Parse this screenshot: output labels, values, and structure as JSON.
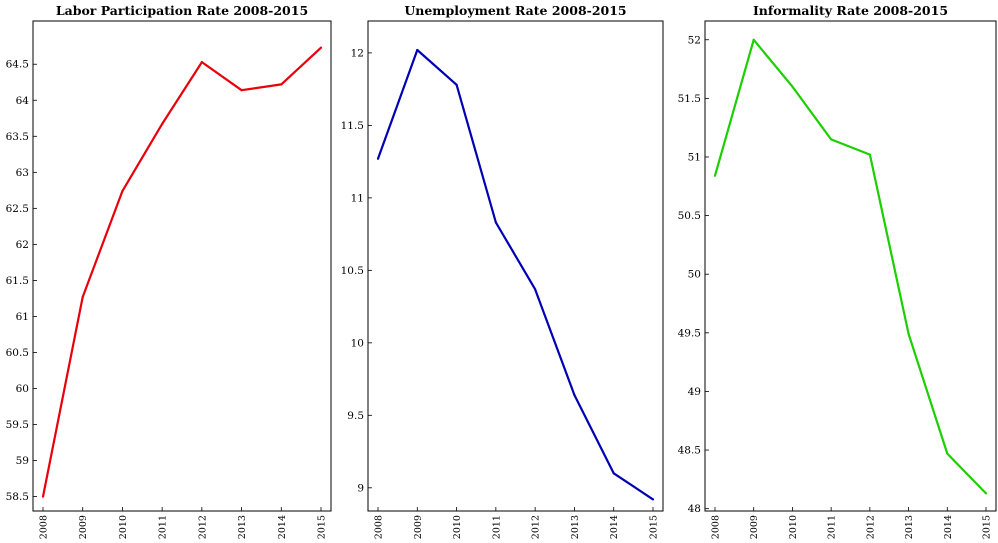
{
  "chart_data": [
    {
      "type": "line",
      "title": "Labor Participation Rate 2008-2015",
      "x": [
        "2008",
        "2009",
        "2010",
        "2011",
        "2012",
        "2013",
        "2014",
        "2015"
      ],
      "series": [
        {
          "values": [
            58.5,
            61.27,
            62.74,
            63.67,
            64.53,
            64.14,
            64.22,
            64.73
          ],
          "color": "#e8000b"
        }
      ],
      "ylim": [
        58.3,
        65.1
      ],
      "yticks": [
        "58.5",
        "59",
        "59.5",
        "60",
        "60.5",
        "61",
        "61.5",
        "62",
        "62.5",
        "63",
        "63.5",
        "64",
        "64.5"
      ],
      "grid": false,
      "legend": "none"
    },
    {
      "type": "line",
      "title": "Unemployment Rate 2008-2015",
      "x": [
        "2008",
        "2009",
        "2010",
        "2011",
        "2012",
        "2013",
        "2014",
        "2015"
      ],
      "series": [
        {
          "values": [
            11.27,
            12.02,
            11.78,
            10.83,
            10.37,
            9.64,
            9.1,
            8.92
          ],
          "color": "#0000b4"
        }
      ],
      "ylim": [
        8.84,
        12.22
      ],
      "yticks": [
        "9",
        "9.5",
        "10",
        "10.5",
        "11",
        "11.5",
        "12"
      ],
      "grid": false,
      "legend": "none"
    },
    {
      "type": "line",
      "title": "Informality Rate 2008-2015",
      "x": [
        "2008",
        "2009",
        "2010",
        "2011",
        "2012",
        "2013",
        "2014",
        "2015"
      ],
      "series": [
        {
          "values": [
            50.84,
            52.0,
            51.6,
            51.15,
            51.02,
            49.49,
            48.47,
            48.13
          ],
          "color": "#1ccf00"
        }
      ],
      "ylim": [
        47.98,
        52.16
      ],
      "yticks": [
        "48",
        "48.5",
        "49",
        "49.5",
        "50",
        "50.5",
        "51",
        "51.5",
        "52"
      ],
      "grid": false,
      "legend": "none"
    }
  ]
}
